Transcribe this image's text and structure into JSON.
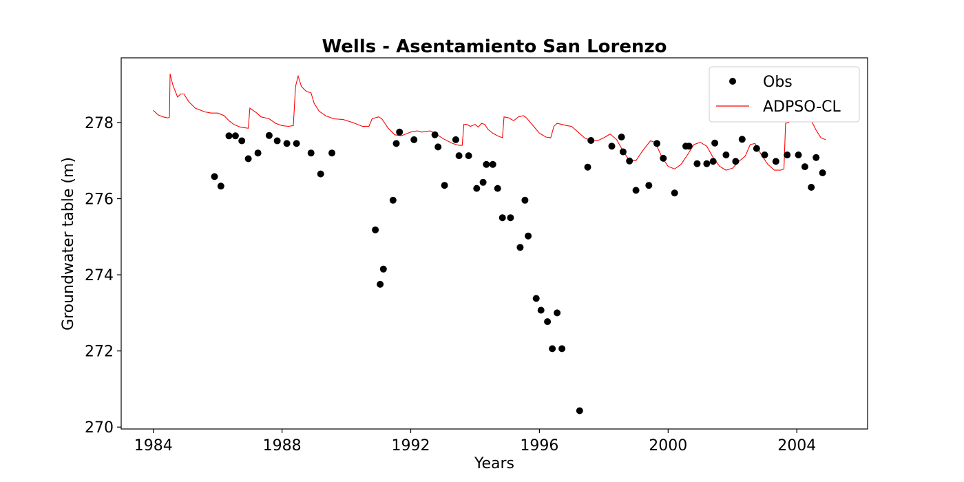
{
  "chart_data": {
    "type": "scatter",
    "title": "Wells - Asentamiento San Lorenzo",
    "xlabel": "Years",
    "ylabel": "Groundwater table (m)",
    "xlim": [
      1983,
      2006.2
    ],
    "ylim": [
      269.95,
      279.7
    ],
    "xticks": [
      1984,
      1988,
      1992,
      1996,
      2000,
      2004
    ],
    "yticks": [
      270,
      272,
      274,
      276,
      278
    ],
    "legend_position": "top-right",
    "series": [
      {
        "name": "Obs",
        "kind": "markers",
        "color": "#000000",
        "points": [
          [
            1985.9,
            276.58
          ],
          [
            1986.1,
            276.33
          ],
          [
            1986.35,
            277.65
          ],
          [
            1986.55,
            277.65
          ],
          [
            1986.75,
            277.52
          ],
          [
            1986.95,
            277.05
          ],
          [
            1987.25,
            277.2
          ],
          [
            1987.6,
            277.66
          ],
          [
            1987.85,
            277.52
          ],
          [
            1988.15,
            277.45
          ],
          [
            1988.45,
            277.45
          ],
          [
            1988.9,
            277.2
          ],
          [
            1989.2,
            276.65
          ],
          [
            1989.55,
            277.2
          ],
          [
            1990.9,
            275.18
          ],
          [
            1991.05,
            273.75
          ],
          [
            1991.15,
            274.15
          ],
          [
            1991.45,
            275.96
          ],
          [
            1991.55,
            277.45
          ],
          [
            1991.65,
            277.75
          ],
          [
            1992.1,
            277.55
          ],
          [
            1992.75,
            277.68
          ],
          [
            1992.85,
            277.36
          ],
          [
            1993.05,
            276.35
          ],
          [
            1993.4,
            277.55
          ],
          [
            1993.5,
            277.13
          ],
          [
            1993.8,
            277.13
          ],
          [
            1994.05,
            276.27
          ],
          [
            1994.25,
            276.43
          ],
          [
            1994.35,
            276.9
          ],
          [
            1994.55,
            276.9
          ],
          [
            1994.7,
            276.27
          ],
          [
            1994.85,
            275.5
          ],
          [
            1995.1,
            275.5
          ],
          [
            1995.4,
            274.72
          ],
          [
            1995.55,
            275.96
          ],
          [
            1995.65,
            275.02
          ],
          [
            1995.9,
            273.38
          ],
          [
            1996.05,
            273.07
          ],
          [
            1996.25,
            272.77
          ],
          [
            1996.4,
            272.06
          ],
          [
            1996.55,
            273.0
          ],
          [
            1996.7,
            272.06
          ],
          [
            1997.25,
            270.43
          ],
          [
            1997.5,
            276.83
          ],
          [
            1997.6,
            277.53
          ],
          [
            1998.25,
            277.38
          ],
          [
            1998.55,
            277.62
          ],
          [
            1998.6,
            277.23
          ],
          [
            1998.8,
            276.99
          ],
          [
            1999.0,
            276.22
          ],
          [
            1999.4,
            276.35
          ],
          [
            1999.65,
            277.45
          ],
          [
            1999.85,
            277.06
          ],
          [
            2000.2,
            276.15
          ],
          [
            2000.55,
            277.38
          ],
          [
            2000.65,
            277.38
          ],
          [
            2000.9,
            276.92
          ],
          [
            2001.2,
            276.92
          ],
          [
            2001.4,
            276.98
          ],
          [
            2001.45,
            277.46
          ],
          [
            2001.8,
            277.15
          ],
          [
            2002.1,
            276.98
          ],
          [
            2002.3,
            277.56
          ],
          [
            2002.75,
            277.32
          ],
          [
            2003.0,
            277.15
          ],
          [
            2003.35,
            276.98
          ],
          [
            2003.7,
            277.15
          ],
          [
            2004.05,
            277.15
          ],
          [
            2004.25,
            276.84
          ],
          [
            2004.45,
            276.3
          ],
          [
            2004.6,
            277.08
          ],
          [
            2004.8,
            276.68
          ]
        ]
      },
      {
        "name": "ADPSO-CL",
        "kind": "line",
        "color": "#ff0000",
        "points": [
          [
            1984.0,
            278.32
          ],
          [
            1984.15,
            278.2
          ],
          [
            1984.3,
            278.15
          ],
          [
            1984.45,
            278.12
          ],
          [
            1984.5,
            278.14
          ],
          [
            1984.52,
            279.28
          ],
          [
            1984.6,
            279.0
          ],
          [
            1984.75,
            278.67
          ],
          [
            1984.85,
            278.75
          ],
          [
            1984.95,
            278.75
          ],
          [
            1985.1,
            278.55
          ],
          [
            1985.3,
            278.38
          ],
          [
            1985.6,
            278.28
          ],
          [
            1985.8,
            278.25
          ],
          [
            1986.0,
            278.25
          ],
          [
            1986.2,
            278.18
          ],
          [
            1986.35,
            278.05
          ],
          [
            1986.5,
            277.95
          ],
          [
            1986.7,
            277.88
          ],
          [
            1986.95,
            277.85
          ],
          [
            1987.0,
            278.38
          ],
          [
            1987.2,
            278.26
          ],
          [
            1987.35,
            278.15
          ],
          [
            1987.6,
            278.1
          ],
          [
            1987.8,
            277.98
          ],
          [
            1988.0,
            277.92
          ],
          [
            1988.2,
            277.9
          ],
          [
            1988.35,
            277.92
          ],
          [
            1988.42,
            278.95
          ],
          [
            1988.5,
            279.22
          ],
          [
            1988.6,
            278.95
          ],
          [
            1988.75,
            278.82
          ],
          [
            1988.9,
            278.78
          ],
          [
            1989.0,
            278.5
          ],
          [
            1989.15,
            278.3
          ],
          [
            1989.35,
            278.18
          ],
          [
            1989.6,
            278.1
          ],
          [
            1989.9,
            278.08
          ],
          [
            1990.2,
            278.0
          ],
          [
            1990.5,
            277.9
          ],
          [
            1990.7,
            277.9
          ],
          [
            1990.8,
            278.1
          ],
          [
            1991.0,
            278.15
          ],
          [
            1991.1,
            278.1
          ],
          [
            1991.3,
            277.85
          ],
          [
            1991.5,
            277.68
          ],
          [
            1991.7,
            277.65
          ],
          [
            1992.0,
            277.75
          ],
          [
            1992.2,
            277.78
          ],
          [
            1992.35,
            277.75
          ],
          [
            1992.6,
            277.78
          ],
          [
            1992.75,
            277.72
          ],
          [
            1993.0,
            277.58
          ],
          [
            1993.3,
            277.45
          ],
          [
            1993.5,
            277.4
          ],
          [
            1993.6,
            277.4
          ],
          [
            1993.65,
            277.95
          ],
          [
            1993.75,
            277.95
          ],
          [
            1993.85,
            277.9
          ],
          [
            1994.0,
            277.95
          ],
          [
            1994.1,
            277.88
          ],
          [
            1994.2,
            277.98
          ],
          [
            1994.3,
            277.95
          ],
          [
            1994.4,
            277.82
          ],
          [
            1994.55,
            277.72
          ],
          [
            1994.7,
            277.65
          ],
          [
            1994.85,
            277.6
          ],
          [
            1994.9,
            278.15
          ],
          [
            1995.05,
            278.12
          ],
          [
            1995.2,
            278.05
          ],
          [
            1995.35,
            278.15
          ],
          [
            1995.5,
            278.18
          ],
          [
            1995.6,
            278.12
          ],
          [
            1995.8,
            277.92
          ],
          [
            1996.0,
            277.72
          ],
          [
            1996.2,
            277.62
          ],
          [
            1996.35,
            277.6
          ],
          [
            1996.45,
            277.9
          ],
          [
            1996.55,
            277.98
          ],
          [
            1996.7,
            277.95
          ],
          [
            1996.85,
            277.92
          ],
          [
            1997.0,
            277.9
          ],
          [
            1997.2,
            277.75
          ],
          [
            1997.4,
            277.6
          ],
          [
            1997.6,
            277.53
          ],
          [
            1997.8,
            277.52
          ],
          [
            1998.0,
            277.6
          ],
          [
            1998.2,
            277.7
          ],
          [
            1998.4,
            277.55
          ],
          [
            1998.6,
            277.25
          ],
          [
            1998.8,
            277.0
          ],
          [
            1999.0,
            277.0
          ],
          [
            1999.2,
            277.25
          ],
          [
            1999.45,
            277.52
          ],
          [
            1999.6,
            277.48
          ],
          [
            1999.8,
            277.1
          ],
          [
            2000.0,
            276.85
          ],
          [
            2000.2,
            276.78
          ],
          [
            2000.4,
            276.9
          ],
          [
            2000.6,
            277.15
          ],
          [
            2000.8,
            277.42
          ],
          [
            2001.0,
            277.48
          ],
          [
            2001.2,
            277.38
          ],
          [
            2001.4,
            277.08
          ],
          [
            2001.6,
            276.85
          ],
          [
            2001.8,
            276.75
          ],
          [
            2002.0,
            276.8
          ],
          [
            2002.2,
            276.98
          ],
          [
            2002.4,
            277.12
          ],
          [
            2002.55,
            277.42
          ],
          [
            2002.7,
            277.45
          ],
          [
            2002.9,
            277.15
          ],
          [
            2003.1,
            276.9
          ],
          [
            2003.3,
            276.75
          ],
          [
            2003.5,
            276.75
          ],
          [
            2003.6,
            276.78
          ],
          [
            2003.65,
            277.98
          ],
          [
            2003.75,
            278.0
          ],
          [
            2003.85,
            278.15
          ],
          [
            2004.0,
            278.18
          ],
          [
            2004.1,
            278.15
          ],
          [
            2004.2,
            278.22
          ],
          [
            2004.3,
            278.25
          ],
          [
            2004.45,
            278.05
          ],
          [
            2004.6,
            277.8
          ],
          [
            2004.75,
            277.6
          ],
          [
            2004.9,
            277.55
          ]
        ]
      }
    ]
  }
}
